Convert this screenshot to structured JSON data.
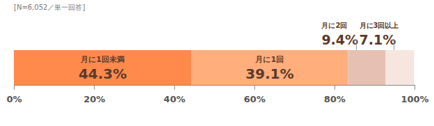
{
  "chart_data": {
    "type": "bar",
    "orientation": "horizontal",
    "stacked": true,
    "subtitle": "[N=6,052／単一回答]",
    "categories": [
      null
    ],
    "series": [
      {
        "name": "月に1回未満",
        "color": "#ff8a4c",
        "values": [
          44.3
        ],
        "value_labels": [
          "44.3%"
        ]
      },
      {
        "name": "月に1回",
        "color": "#ffae7c",
        "values": [
          39.1
        ],
        "value_labels": [
          "39.1%"
        ]
      },
      {
        "name": "月に2回",
        "color": "#e6c1b3",
        "values": [
          9.4
        ],
        "value_labels": [
          "9.4%"
        ]
      },
      {
        "name": "月に3回以上",
        "color": "#f5e6df",
        "values": [
          7.1
        ],
        "value_labels": [
          "7.1%"
        ]
      }
    ],
    "xlim": [
      0,
      100
    ],
    "xticks": [
      {
        "value": 0,
        "label": "0%"
      },
      {
        "value": 20,
        "label": "20%"
      },
      {
        "value": 40,
        "label": "40%"
      },
      {
        "value": 60,
        "label": "60%"
      },
      {
        "value": 80,
        "label": "80%"
      },
      {
        "value": 100,
        "label": "100%"
      }
    ],
    "data_labels": true,
    "tick_labels": "x",
    "grid": false
  }
}
